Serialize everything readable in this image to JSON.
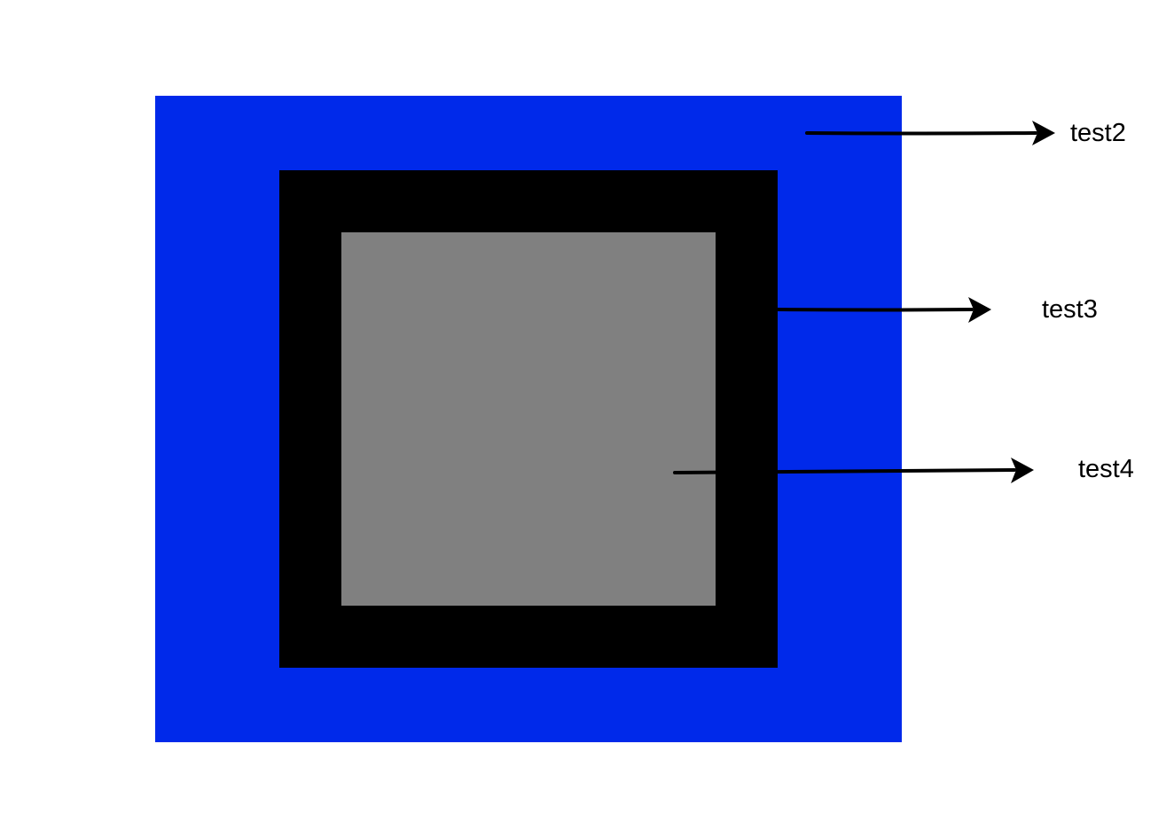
{
  "colors": {
    "outer": "#0029ea",
    "middle": "#000000",
    "inner": "#808080",
    "arrow": "#000000"
  },
  "labels": {
    "test2": "test2",
    "test3": "test3",
    "test4": "test4"
  }
}
